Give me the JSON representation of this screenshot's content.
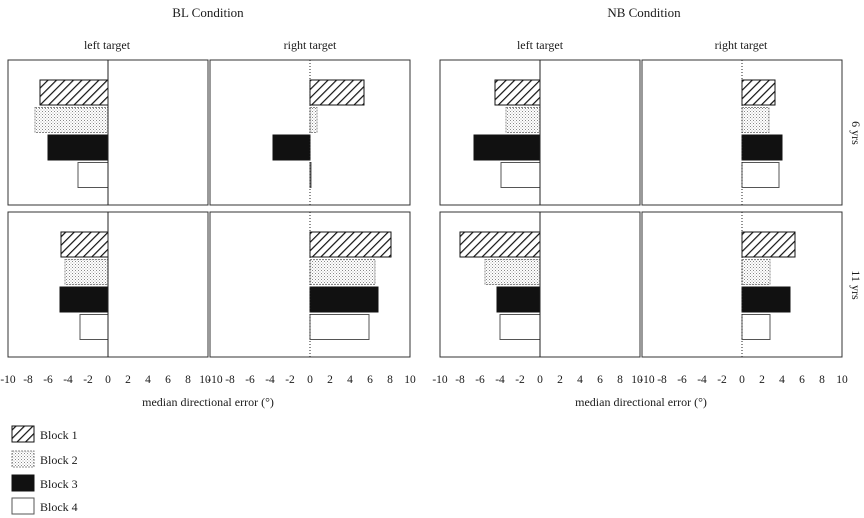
{
  "colors": {
    "ink": "#1a1a1a",
    "panel_border": "#333333",
    "bar_black": "#111111",
    "dots": "#888888"
  },
  "legend": [
    {
      "label": "Block 1",
      "pattern": "hatch"
    },
    {
      "label": "Block 2",
      "pattern": "dots"
    },
    {
      "label": "Block 3",
      "pattern": "solid"
    },
    {
      "label": "Block 4",
      "pattern": "empty"
    }
  ],
  "chart_data": {
    "type": "bar",
    "orientation": "horizontal",
    "xlabel": "median directional error (°)",
    "xlim": [
      -10,
      10
    ],
    "xticks": [
      -10,
      -8,
      -6,
      -4,
      -2,
      0,
      2,
      4,
      6,
      8,
      10
    ],
    "conditions": [
      {
        "title": "BL Condition",
        "xlabel": "median directional error (°)",
        "columns": [
          "left target",
          "right target"
        ],
        "rows": [
          {
            "label": "6 yrs",
            "left": {
              "Block 1": -6.8,
              "Block 2": -7.3,
              "Block 3": -6.0,
              "Block 4": -3.0
            },
            "right": {
              "Block 1": 5.4,
              "Block 2": 0.7,
              "Block 3": -3.7,
              "Block 4": 0.1
            }
          },
          {
            "label": "11 yrs",
            "left": {
              "Block 1": -4.7,
              "Block 2": -4.3,
              "Block 3": -4.8,
              "Block 4": -2.8
            },
            "right": {
              "Block 1": 8.1,
              "Block 2": 6.5,
              "Block 3": 6.8,
              "Block 4": 5.9
            }
          }
        ]
      },
      {
        "title": "NB Condition",
        "xlabel": "median directional error (°)",
        "columns": [
          "left target",
          "right target"
        ],
        "rows": [
          {
            "label": "6 yrs",
            "left": {
              "Block 1": -4.5,
              "Block 2": -3.4,
              "Block 3": -6.6,
              "Block 4": -3.9
            },
            "right": {
              "Block 1": 3.3,
              "Block 2": 2.7,
              "Block 3": 4.0,
              "Block 4": 3.7
            }
          },
          {
            "label": "11 yrs",
            "left": {
              "Block 1": -8.0,
              "Block 2": -5.5,
              "Block 3": -4.3,
              "Block 4": -4.0
            },
            "right": {
              "Block 1": 5.3,
              "Block 2": 2.8,
              "Block 3": 4.8,
              "Block 4": 2.8
            }
          }
        ]
      }
    ]
  }
}
